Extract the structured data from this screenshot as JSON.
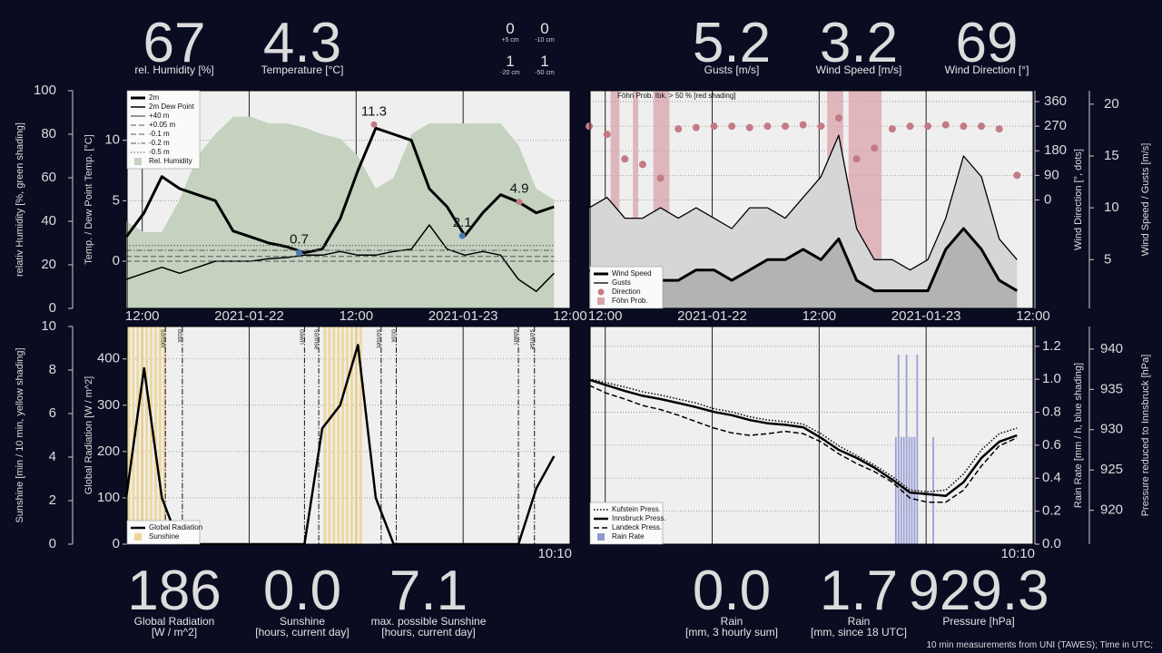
{
  "readouts": {
    "humidity": {
      "value": "67",
      "label": "rel. Humidity [%]"
    },
    "temperature": {
      "value": "4.3",
      "label": "Temperature [°C]"
    },
    "soil": [
      {
        "value": "0",
        "label": "+5 cm"
      },
      {
        "value": "0",
        "label": "-10 cm"
      },
      {
        "value": "1",
        "label": "-20 cm"
      },
      {
        "value": "1",
        "label": "-50 cm"
      }
    ],
    "gusts": {
      "value": "5.2",
      "label": "Gusts [m/s]"
    },
    "wind_speed": {
      "value": "3.2",
      "label": "Wind Speed [m/s]"
    },
    "wind_direction": {
      "value": "69",
      "label": "Wind Direction [°]"
    },
    "global_radiation": {
      "value": "186",
      "label": "Global Radiation",
      "unit": "[W / m^2]"
    },
    "sunshine": {
      "value": "0.0",
      "label": "Sunshine",
      "unit": "[hours, current day]"
    },
    "max_sunshine": {
      "value": "7.1",
      "label": "max. possible Sunshine",
      "unit": "[hours, current day]"
    },
    "rain_3h": {
      "value": "0.0",
      "label": "Rain",
      "unit": "[mm, 3 hourly sum]"
    },
    "rain_18": {
      "value": "1.7",
      "label": "Rain",
      "unit": "[mm, since 18 UTC]"
    },
    "pressure": {
      "value": "929.3",
      "label": "Pressure [hPa]"
    }
  },
  "current_time": "10:10",
  "footer": "10 min measurements from UNI (TAWES); Time in UTC;",
  "chart_data": [
    {
      "type": "line",
      "ylabel": "Temp. / Dew Point Temp. [°C]",
      "y2label": "relativ Humidity [%, green shading]",
      "x": [
        -1.8,
        0.2,
        2.2,
        4.2,
        6.2,
        8.2,
        10.2,
        12.2,
        14.2,
        16.2,
        18.2,
        20.2,
        22.2,
        24.2,
        26.2,
        28.2,
        30.2,
        32.2,
        34.2,
        36.2,
        38.2,
        40.2,
        42.2,
        44.2,
        46.2
      ],
      "xlim": [
        -1.7,
        48
      ],
      "xticks": [
        {
          "value": 0,
          "label": "12:00"
        },
        {
          "value": 12,
          "label": "2021-01-22"
        },
        {
          "value": 24,
          "label": "12:00"
        },
        {
          "value": 36,
          "label": "2021-01-23"
        },
        {
          "value": 48,
          "label": "12:00"
        }
      ],
      "ylim": [
        -3.9,
        14.1
      ],
      "yticks": [
        0,
        5,
        10
      ],
      "y2lim": [
        0,
        100
      ],
      "y2ticks": [
        0,
        20,
        40,
        60,
        80,
        100
      ],
      "grid": "y",
      "legend": "upper left",
      "series": [
        {
          "name": "2m",
          "type": "line",
          "color": "#000000",
          "line_width": 3,
          "line_style": "solid",
          "values": [
            2.0,
            4.0,
            7.0,
            6.0,
            5.5,
            5.0,
            2.5,
            2.0,
            1.5,
            1.2,
            0.7,
            1.0,
            3.5,
            7.5,
            11.0,
            10.5,
            10.0,
            6.0,
            4.5,
            2.1,
            4.0,
            5.5,
            4.9,
            4.0,
            4.5
          ]
        },
        {
          "name": "2m Dew Point",
          "type": "line",
          "color": "#000000",
          "line_width": 1.5,
          "line_style": "solid",
          "values": [
            -1.5,
            -1.0,
            -0.5,
            -1.0,
            -0.5,
            0.0,
            0.0,
            0.0,
            0.2,
            0.3,
            0.5,
            0.5,
            0.8,
            0.5,
            0.5,
            0.8,
            1.0,
            3.0,
            1.0,
            0.5,
            0.8,
            0.5,
            -1.5,
            -2.5,
            -1.0
          ]
        },
        {
          "name": "+40 m",
          "type": "line",
          "color": "#000000",
          "line_width": 0.8,
          "line_style": "solid",
          "values": [
            null,
            null,
            null,
            null,
            null,
            null,
            null,
            null,
            null,
            null,
            null,
            null,
            null,
            null,
            null,
            null,
            null,
            null,
            null,
            null,
            null,
            null,
            null,
            null,
            null
          ]
        },
        {
          "name": "+0.05 m",
          "type": "line",
          "color": "#555555",
          "line_width": 1,
          "line_style": "dashed",
          "values": [
            0,
            0,
            0,
            0,
            0,
            0,
            0,
            0,
            0,
            0,
            0,
            0,
            0,
            0,
            0,
            0,
            0,
            0,
            0,
            0,
            0,
            0,
            0,
            0,
            0
          ]
        },
        {
          "name": "-0.1 m",
          "type": "line",
          "color": "#555555",
          "line_width": 1,
          "line_style": "dashed",
          "values": [
            0.4,
            0.4,
            0.4,
            0.4,
            0.4,
            0.4,
            0.4,
            0.4,
            0.4,
            0.4,
            0.4,
            0.4,
            0.4,
            0.4,
            0.4,
            0.4,
            0.4,
            0.4,
            0.4,
            0.4,
            0.4,
            0.4,
            0.4,
            0.4,
            0.4
          ]
        },
        {
          "name": "-0.2 m",
          "type": "line",
          "color": "#555555",
          "line_width": 1,
          "line_style": "dashdot",
          "values": [
            0.9,
            0.9,
            0.9,
            0.9,
            0.9,
            0.9,
            0.9,
            0.9,
            0.9,
            0.9,
            0.9,
            0.9,
            0.9,
            0.9,
            0.9,
            0.9,
            0.9,
            0.9,
            0.9,
            0.9,
            0.9,
            0.9,
            0.9,
            0.9,
            0.9
          ]
        },
        {
          "name": "-0.5 m",
          "type": "line",
          "color": "#555555",
          "line_width": 1,
          "line_style": "dotted",
          "values": [
            1.3,
            1.3,
            1.3,
            1.3,
            1.3,
            1.3,
            1.3,
            1.3,
            1.3,
            1.3,
            1.3,
            1.3,
            1.3,
            1.3,
            1.3,
            1.3,
            1.3,
            1.3,
            1.3,
            1.3,
            1.3,
            1.3,
            1.3,
            1.3,
            1.3
          ]
        },
        {
          "name": "Rel. Humidity",
          "type": "area",
          "axis": "y2",
          "color": "#c4d2bf",
          "values": [
            40,
            35,
            35,
            50,
            70,
            80,
            88,
            88,
            85,
            85,
            83,
            80,
            78,
            70,
            55,
            60,
            80,
            85,
            85,
            85,
            85,
            85,
            75,
            55,
            50
          ]
        }
      ],
      "annotations": [
        {
          "x": 17.6,
          "value": 0.7,
          "color": "#4a7ab8"
        },
        {
          "x": 26.0,
          "value": 11.3,
          "color": "#c27b85"
        },
        {
          "x": 35.9,
          "value": 2.1,
          "color": "#4a7ab8"
        },
        {
          "x": 42.3,
          "value": 4.9,
          "color": "#c27b85"
        }
      ]
    },
    {
      "type": "line",
      "ylabel": "Wind Speed / Gusts [m/s]",
      "y2label": "Wind Direction [°, dots]",
      "note": "Föhn Prob. Ibk. > 50 % [red shading]",
      "x": [
        -1.8,
        0.2,
        2.2,
        4.2,
        6.2,
        8.2,
        10.2,
        12.2,
        14.2,
        16.2,
        18.2,
        20.2,
        22.2,
        24.2,
        26.2,
        28.2,
        30.2,
        32.2,
        34.2,
        36.2,
        38.2,
        40.2,
        42.2,
        44.2,
        46.2
      ],
      "xlim": [
        -1.7,
        48
      ],
      "xticks": [
        {
          "value": 0,
          "label": "12:00"
        },
        {
          "value": 12,
          "label": "2021-01-22"
        },
        {
          "value": 24,
          "label": "12:00"
        },
        {
          "value": 36,
          "label": "2021-01-23"
        },
        {
          "value": 48,
          "label": "12:00"
        }
      ],
      "ylim": [
        0.3,
        21.3
      ],
      "yticks": [
        5,
        10,
        15,
        20
      ],
      "y2lim": [
        -397,
        400
      ],
      "y2ticks": [
        0,
        90,
        180,
        270,
        360
      ],
      "grid": "y2",
      "legend": "lower left",
      "series": [
        {
          "name": "Wind Speed",
          "type": "line",
          "color": "#000000",
          "fill": "#b3b3b3",
          "line_width": 3,
          "line_style": "solid",
          "values": [
            4,
            3,
            2,
            2,
            3,
            3,
            4,
            4,
            3,
            4,
            5,
            5,
            6,
            5,
            7,
            3,
            2,
            2,
            2,
            2,
            6,
            8,
            6,
            3,
            2
          ]
        },
        {
          "name": "Gusts",
          "type": "line",
          "color": "#000000",
          "fill": "#d6d6d6",
          "line_width": 1.3,
          "line_style": "solid",
          "values": [
            10,
            11,
            9,
            9,
            10,
            9,
            10,
            9,
            8,
            10,
            10,
            9,
            11,
            13,
            17,
            8,
            5,
            5,
            4,
            5,
            9,
            15,
            13,
            7,
            5
          ]
        },
        {
          "name": "Direction",
          "type": "scatter",
          "axis": "y2",
          "color": "#c27b85",
          "values": [
            270,
            240,
            150,
            130,
            80,
            260,
            265,
            270,
            270,
            265,
            270,
            270,
            275,
            270,
            300,
            150,
            190,
            260,
            270,
            270,
            275,
            270,
            270,
            260,
            90
          ]
        },
        {
          "name": "Föhn Prob.",
          "type": "band",
          "color": "#d9a3ab",
          "bands": [
            [
              0.6,
              1.6
            ],
            [
              3.1,
              3.7
            ],
            [
              5.4,
              7.2
            ],
            [
              24.9,
              26.7
            ],
            [
              27.3,
              31.0
            ]
          ]
        }
      ]
    },
    {
      "type": "line",
      "ylabel": "Global Radiation [W / m^2]",
      "y2label": "Sunshine [min / 10 min, yellow shading]",
      "x": [
        -1.8,
        0.2,
        2.2,
        4.2,
        6.2,
        8.2,
        10.2,
        12.2,
        14.2,
        16.2,
        18.2,
        20.2,
        22.2,
        24.2,
        26.2,
        28.2,
        30.2,
        32.2,
        34.2,
        36.2,
        38.2,
        40.2,
        42.2,
        44.2,
        46.2
      ],
      "xlim": [
        -1.7,
        48
      ],
      "xticks": [
        0,
        12,
        24,
        36,
        48
      ],
      "ylim": [
        0,
        470
      ],
      "yticks": [
        0,
        100,
        200,
        300,
        400
      ],
      "y2lim": [
        0,
        10
      ],
      "y2ticks": [
        0,
        2,
        4,
        6,
        8,
        10
      ],
      "grid": "y",
      "legend": "lower left",
      "series": [
        {
          "name": "Global Radiation",
          "type": "line",
          "color": "#000000",
          "line_width": 2.5,
          "line_style": "solid",
          "values": [
            100,
            380,
            100,
            0,
            0,
            0,
            0,
            0,
            0,
            0,
            0,
            250,
            300,
            430,
            100,
            0,
            0,
            0,
            0,
            0,
            0,
            0,
            0,
            120,
            190
          ]
        },
        {
          "name": "Sunshine",
          "type": "bar",
          "axis": "y2",
          "color": "#ecd595",
          "x": [
            -1.5,
            -1,
            -0.5,
            0,
            0.5,
            1,
            1.5,
            2,
            2.5,
            20.5,
            21,
            21.5,
            22,
            22.5,
            23,
            23.5,
            24,
            24.5
          ],
          "values": [
            10,
            10,
            10,
            10,
            10,
            10,
            10,
            10,
            10,
            10,
            10,
            10,
            10,
            10,
            10,
            10,
            10,
            10
          ]
        }
      ],
      "events": [
        {
          "label": "sunset",
          "x": 2.6
        },
        {
          "label": "dusk",
          "x": 4.5
        },
        {
          "label": "dawn",
          "x": 18.2
        },
        {
          "label": "sunrise",
          "x": 19.8
        },
        {
          "label": "sunset",
          "x": 26.8
        },
        {
          "label": "dusk",
          "x": 28.5
        },
        {
          "label": "dawn",
          "x": 42.2
        },
        {
          "label": "sunrise",
          "x": 44.0
        }
      ]
    },
    {
      "type": "line",
      "ylabel": "Rain Rate [mm / h, blue shading]",
      "y2label": "Pressure reduced to Innsbruck [hPa]",
      "x": [
        -1.8,
        0.2,
        2.2,
        4.2,
        6.2,
        8.2,
        10.2,
        12.2,
        14.2,
        16.2,
        18.2,
        20.2,
        22.2,
        24.2,
        26.2,
        28.2,
        30.2,
        32.2,
        34.2,
        36.2,
        38.2,
        40.2,
        42.2,
        44.2,
        46.2
      ],
      "xlim": [
        -1.7,
        48
      ],
      "xticks": [
        0,
        12,
        24,
        36,
        48
      ],
      "ylim": [
        0,
        1.32
      ],
      "yticks": [
        {
          "value": 0,
          "label": "0.0"
        },
        0.2,
        0.4,
        0.6,
        0.8,
        {
          "value": 1,
          "label": "1.0"
        },
        1.2
      ],
      "y2lim": [
        915.8,
        942.8
      ],
      "y2ticks": [
        920,
        925,
        930,
        935,
        940
      ],
      "grid": "y",
      "legend": "lower left",
      "series": [
        {
          "name": "Kufstein Press.",
          "type": "line",
          "axis": "y2",
          "color": "#000000",
          "line_width": 1.5,
          "line_style": "dotted",
          "values": [
            936.3,
            935.8,
            935.3,
            934.7,
            934.3,
            933.8,
            933.3,
            932.6,
            932.2,
            931.6,
            931.2,
            931.0,
            930.7,
            929.5,
            928.0,
            926.8,
            925.6,
            924.2,
            922.5,
            922.3,
            922.5,
            924.5,
            927.5,
            929.5,
            930.2
          ]
        },
        {
          "name": "Innsbruck Press.",
          "type": "line",
          "axis": "y2",
          "color": "#000000",
          "line_width": 2.5,
          "line_style": "solid",
          "values": [
            936.2,
            935.5,
            934.8,
            934.2,
            933.8,
            933.3,
            932.8,
            932.2,
            931.8,
            931.2,
            930.8,
            930.6,
            930.3,
            929.0,
            927.5,
            926.5,
            925.3,
            923.8,
            922.2,
            922.0,
            921.8,
            923.5,
            926.5,
            928.5,
            929.3
          ]
        },
        {
          "name": "Landeck Press.",
          "type": "line",
          "axis": "y2",
          "color": "#000000",
          "line_width": 1.5,
          "line_style": "dashed",
          "values": [
            935.5,
            934.5,
            933.8,
            933.0,
            932.5,
            931.8,
            931.0,
            930.2,
            929.6,
            929.3,
            929.5,
            929.8,
            929.5,
            928.5,
            927.0,
            925.8,
            924.8,
            923.5,
            921.5,
            921.0,
            921.0,
            922.5,
            925.5,
            928.0,
            929.0
          ]
        },
        {
          "name": "Rain Rate",
          "type": "bar",
          "color": "#8f96d0",
          "x": [
            32.6,
            32.9,
            33.2,
            33.5,
            33.8,
            34.1,
            34.4,
            34.7,
            35.0,
            36.8
          ],
          "values": [
            0.65,
            1.15,
            0.65,
            0.65,
            1.15,
            0.65,
            0.65,
            0.65,
            1.15,
            0.65
          ]
        }
      ]
    }
  ]
}
